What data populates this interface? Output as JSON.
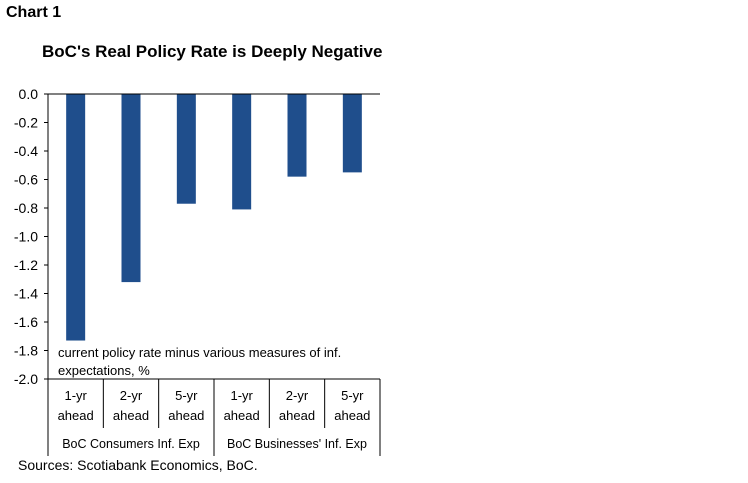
{
  "header": {
    "chart_label": "Chart 1"
  },
  "footer": {
    "source": "Sources: Scotiabank Economics, BoC."
  },
  "chart_data": {
    "type": "bar",
    "title": "BoC's Real Policy Rate is Deeply Negative",
    "annotation_lines": [
      "current policy rate minus various measures of inf.",
      "expectations, %"
    ],
    "categories": [
      [
        "1-yr",
        "ahead"
      ],
      [
        "2-yr",
        "ahead"
      ],
      [
        "5-yr",
        "ahead"
      ],
      [
        "1-yr",
        "ahead"
      ],
      [
        "2-yr",
        "ahead"
      ],
      [
        "5-yr",
        "ahead"
      ]
    ],
    "groups": [
      {
        "label": "BoC Consumers Inf. Exp",
        "count": 3
      },
      {
        "label": "BoC Businesses' Inf. Exp",
        "count": 3
      }
    ],
    "values": [
      -1.73,
      -1.32,
      -0.77,
      -0.81,
      -0.58,
      -0.55
    ],
    "ylim": [
      -2.0,
      0.0
    ],
    "yticks": [
      "0.0",
      "-0.2",
      "-0.4",
      "-0.6",
      "-0.8",
      "-1.0",
      "-1.2",
      "-1.4",
      "-1.6",
      "-1.8",
      "-2.0"
    ],
    "bar_color": "#1f4e8c",
    "grid": false
  }
}
